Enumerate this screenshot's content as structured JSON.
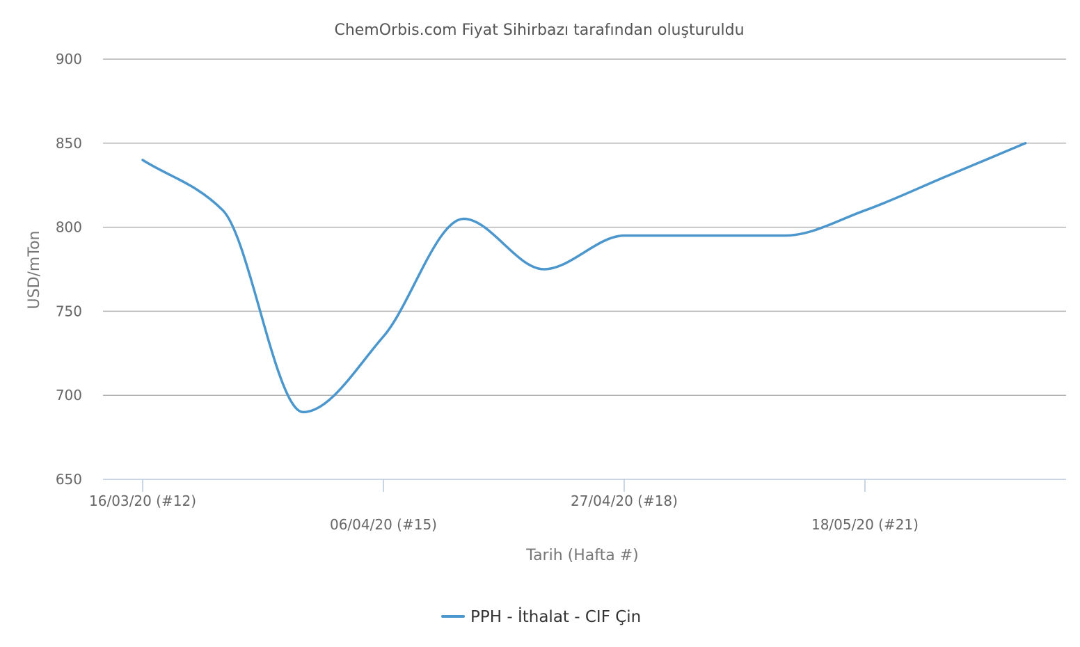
{
  "chart_data": {
    "type": "line",
    "title": "ChemOrbis.com Fiyat Sihirbazı tarafından oluşturuldu",
    "xlabel": "Tarih (Hafta #)",
    "ylabel": "USD/mTon",
    "ylim": [
      650,
      900
    ],
    "y_ticks": [
      "650",
      "700",
      "750",
      "800",
      "850",
      "900"
    ],
    "x_ticks": [
      {
        "label": "16/03/20 (#12)",
        "week": 12
      },
      {
        "label": "06/04/20 (#15)",
        "week": 15
      },
      {
        "label": "27/04/20 (#18)",
        "week": 18
      },
      {
        "label": "18/05/20 (#21)",
        "week": 21
      }
    ],
    "grid": true,
    "legend_position": "bottom-center",
    "series": [
      {
        "name": "PPH - İthalat - CIF Çin",
        "color": "#4b97cd",
        "points": [
          {
            "week": 12,
            "value": 840
          },
          {
            "week": 13,
            "value": 810
          },
          {
            "week": 14,
            "value": 690
          },
          {
            "week": 15,
            "value": 735
          },
          {
            "week": 16,
            "value": 805
          },
          {
            "week": 17,
            "value": 775
          },
          {
            "week": 18,
            "value": 795
          },
          {
            "week": 19,
            "value": 795
          },
          {
            "week": 20,
            "value": 795
          },
          {
            "week": 21,
            "value": 810
          },
          {
            "week": 22,
            "value": 830
          },
          {
            "week": 23,
            "value": 850
          }
        ]
      }
    ]
  }
}
